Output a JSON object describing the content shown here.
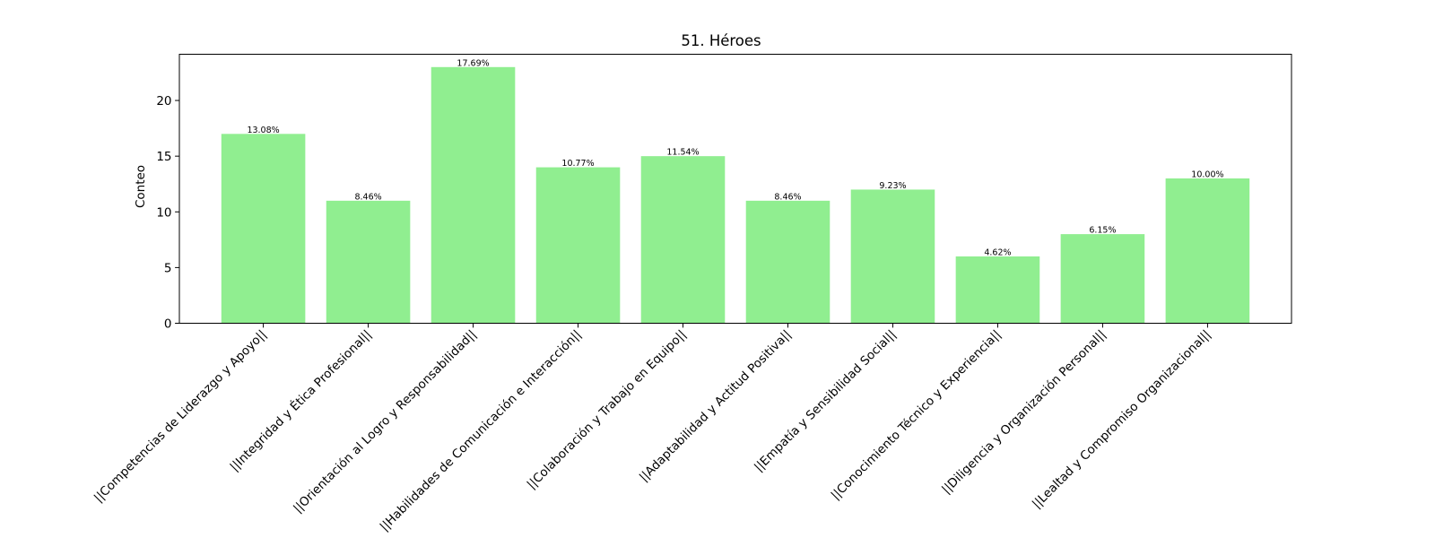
{
  "chart_data": {
    "type": "bar",
    "title": "51. Héroes",
    "xlabel": "",
    "ylabel": "Conteo",
    "ylim": [
      0,
      24.15
    ],
    "yticks": [
      0,
      5,
      10,
      15,
      20
    ],
    "grid": false,
    "bar_color": "#90EE90",
    "categories": [
      "||Competencias de Liderazgo y Apoyo||",
      "||Integridad y Ética Profesional||",
      "||Orientación al Logro y Responsabilidad||",
      "||Habilidades de Comunicación e Interacción||",
      "||Colaboración y Trabajo en Equipo||",
      "||Adaptabilidad y Actitud Positiva||",
      "||Empatía y Sensibilidad Social||",
      "||Conocimiento Técnico y Experiencia||",
      "||Diligencia y Organización Personal||",
      "||Lealtad y Compromiso Organizacional||"
    ],
    "values": [
      17,
      11,
      23,
      14,
      15,
      11,
      12,
      6,
      8,
      13
    ],
    "data_labels": [
      "13.08%",
      "8.46%",
      "17.69%",
      "10.77%",
      "11.54%",
      "8.46%",
      "9.23%",
      "4.62%",
      "6.15%",
      "10.00%"
    ]
  }
}
